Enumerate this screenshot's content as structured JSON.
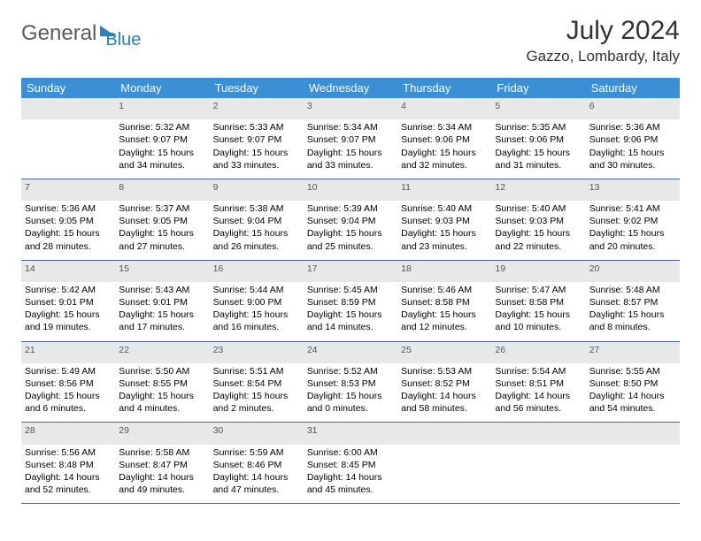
{
  "logo": {
    "text1": "General",
    "text2": "Blue"
  },
  "title": "July 2024",
  "location": "Gazzo, Lombardy, Italy",
  "weekdays": [
    "Sunday",
    "Monday",
    "Tuesday",
    "Wednesday",
    "Thursday",
    "Friday",
    "Saturday"
  ],
  "colors": {
    "header_bg": "#3b8fd4",
    "header_text": "#ffffff",
    "daynum_bg": "#e8e8e8",
    "row_divider": "#4a6a8a",
    "logo_gray": "#5a5a5a",
    "logo_blue": "#2a7fbf"
  },
  "weeks": [
    {
      "nums": [
        "",
        "1",
        "2",
        "3",
        "4",
        "5",
        "6"
      ],
      "cells": [
        null,
        {
          "sr": "Sunrise: 5:32 AM",
          "ss": "Sunset: 9:07 PM",
          "dl": "Daylight: 15 hours and 34 minutes."
        },
        {
          "sr": "Sunrise: 5:33 AM",
          "ss": "Sunset: 9:07 PM",
          "dl": "Daylight: 15 hours and 33 minutes."
        },
        {
          "sr": "Sunrise: 5:34 AM",
          "ss": "Sunset: 9:07 PM",
          "dl": "Daylight: 15 hours and 33 minutes."
        },
        {
          "sr": "Sunrise: 5:34 AM",
          "ss": "Sunset: 9:06 PM",
          "dl": "Daylight: 15 hours and 32 minutes."
        },
        {
          "sr": "Sunrise: 5:35 AM",
          "ss": "Sunset: 9:06 PM",
          "dl": "Daylight: 15 hours and 31 minutes."
        },
        {
          "sr": "Sunrise: 5:36 AM",
          "ss": "Sunset: 9:06 PM",
          "dl": "Daylight: 15 hours and 30 minutes."
        }
      ]
    },
    {
      "nums": [
        "7",
        "8",
        "9",
        "10",
        "11",
        "12",
        "13"
      ],
      "cells": [
        {
          "sr": "Sunrise: 5:36 AM",
          "ss": "Sunset: 9:05 PM",
          "dl": "Daylight: 15 hours and 28 minutes."
        },
        {
          "sr": "Sunrise: 5:37 AM",
          "ss": "Sunset: 9:05 PM",
          "dl": "Daylight: 15 hours and 27 minutes."
        },
        {
          "sr": "Sunrise: 5:38 AM",
          "ss": "Sunset: 9:04 PM",
          "dl": "Daylight: 15 hours and 26 minutes."
        },
        {
          "sr": "Sunrise: 5:39 AM",
          "ss": "Sunset: 9:04 PM",
          "dl": "Daylight: 15 hours and 25 minutes."
        },
        {
          "sr": "Sunrise: 5:40 AM",
          "ss": "Sunset: 9:03 PM",
          "dl": "Daylight: 15 hours and 23 minutes."
        },
        {
          "sr": "Sunrise: 5:40 AM",
          "ss": "Sunset: 9:03 PM",
          "dl": "Daylight: 15 hours and 22 minutes."
        },
        {
          "sr": "Sunrise: 5:41 AM",
          "ss": "Sunset: 9:02 PM",
          "dl": "Daylight: 15 hours and 20 minutes."
        }
      ]
    },
    {
      "nums": [
        "14",
        "15",
        "16",
        "17",
        "18",
        "19",
        "20"
      ],
      "cells": [
        {
          "sr": "Sunrise: 5:42 AM",
          "ss": "Sunset: 9:01 PM",
          "dl": "Daylight: 15 hours and 19 minutes."
        },
        {
          "sr": "Sunrise: 5:43 AM",
          "ss": "Sunset: 9:01 PM",
          "dl": "Daylight: 15 hours and 17 minutes."
        },
        {
          "sr": "Sunrise: 5:44 AM",
          "ss": "Sunset: 9:00 PM",
          "dl": "Daylight: 15 hours and 16 minutes."
        },
        {
          "sr": "Sunrise: 5:45 AM",
          "ss": "Sunset: 8:59 PM",
          "dl": "Daylight: 15 hours and 14 minutes."
        },
        {
          "sr": "Sunrise: 5:46 AM",
          "ss": "Sunset: 8:58 PM",
          "dl": "Daylight: 15 hours and 12 minutes."
        },
        {
          "sr": "Sunrise: 5:47 AM",
          "ss": "Sunset: 8:58 PM",
          "dl": "Daylight: 15 hours and 10 minutes."
        },
        {
          "sr": "Sunrise: 5:48 AM",
          "ss": "Sunset: 8:57 PM",
          "dl": "Daylight: 15 hours and 8 minutes."
        }
      ]
    },
    {
      "nums": [
        "21",
        "22",
        "23",
        "24",
        "25",
        "26",
        "27"
      ],
      "cells": [
        {
          "sr": "Sunrise: 5:49 AM",
          "ss": "Sunset: 8:56 PM",
          "dl": "Daylight: 15 hours and 6 minutes."
        },
        {
          "sr": "Sunrise: 5:50 AM",
          "ss": "Sunset: 8:55 PM",
          "dl": "Daylight: 15 hours and 4 minutes."
        },
        {
          "sr": "Sunrise: 5:51 AM",
          "ss": "Sunset: 8:54 PM",
          "dl": "Daylight: 15 hours and 2 minutes."
        },
        {
          "sr": "Sunrise: 5:52 AM",
          "ss": "Sunset: 8:53 PM",
          "dl": "Daylight: 15 hours and 0 minutes."
        },
        {
          "sr": "Sunrise: 5:53 AM",
          "ss": "Sunset: 8:52 PM",
          "dl": "Daylight: 14 hours and 58 minutes."
        },
        {
          "sr": "Sunrise: 5:54 AM",
          "ss": "Sunset: 8:51 PM",
          "dl": "Daylight: 14 hours and 56 minutes."
        },
        {
          "sr": "Sunrise: 5:55 AM",
          "ss": "Sunset: 8:50 PM",
          "dl": "Daylight: 14 hours and 54 minutes."
        }
      ]
    },
    {
      "nums": [
        "28",
        "29",
        "30",
        "31",
        "",
        "",
        ""
      ],
      "cells": [
        {
          "sr": "Sunrise: 5:56 AM",
          "ss": "Sunset: 8:48 PM",
          "dl": "Daylight: 14 hours and 52 minutes."
        },
        {
          "sr": "Sunrise: 5:58 AM",
          "ss": "Sunset: 8:47 PM",
          "dl": "Daylight: 14 hours and 49 minutes."
        },
        {
          "sr": "Sunrise: 5:59 AM",
          "ss": "Sunset: 8:46 PM",
          "dl": "Daylight: 14 hours and 47 minutes."
        },
        {
          "sr": "Sunrise: 6:00 AM",
          "ss": "Sunset: 8:45 PM",
          "dl": "Daylight: 14 hours and 45 minutes."
        },
        null,
        null,
        null
      ]
    }
  ]
}
